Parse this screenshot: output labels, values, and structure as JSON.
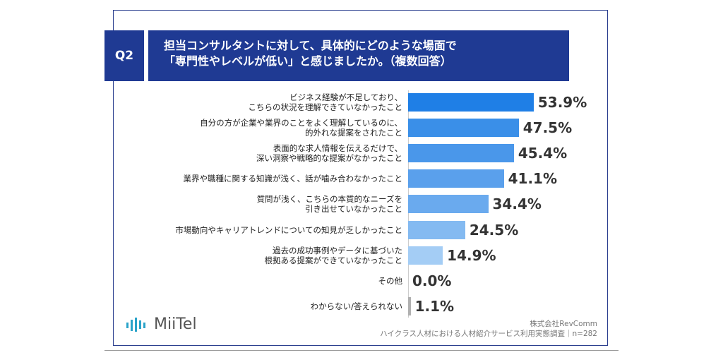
{
  "chart_data": {
    "type": "bar",
    "orientation": "horizontal",
    "question": "Q2",
    "title": "担当コンサルタントに対して、具体的にどのような場面で\n「専門性やレベルが低い」と感じましたか。（複数回答）",
    "categories": [
      "ビジネス経験が不足しており、\nこちらの状況を理解できていなかったこと",
      "自分の方が企業や業界のことをよく理解しているのに、\n的外れな提案をされたこと",
      "表面的な求人情報を伝えるだけで、\n深い洞察や戦略的な提案がなかったこと",
      "業界や職種に関する知識が浅く、話が噛み合わなかったこと",
      "質問が浅く、こちらの本質的なニーズを\n引き出せていなかったこと",
      "市場動向やキャリアトレンドについての知見が乏しかったこと",
      "過去の成功事例やデータに基づいた\n根拠ある提案ができていなかったこと",
      "その他",
      "わからない/答えられない"
    ],
    "values": [
      53.9,
      47.5,
      45.4,
      41.1,
      34.4,
      24.5,
      14.9,
      0.0,
      1.1
    ],
    "value_labels": [
      "53.9%",
      "47.5%",
      "45.4%",
      "41.1%",
      "34.4%",
      "24.5%",
      "14.9%",
      "0.0%",
      "1.1%"
    ],
    "colors": [
      "#1f7fe6",
      "#3a8fe8",
      "#4a97ea",
      "#5aa0ec",
      "#6aaaee",
      "#84baf1",
      "#a4cdf5",
      "#a4cdf5",
      "#b0b0b0"
    ],
    "logo": "MiiTel",
    "source": "株式会社RevComm",
    "survey": "ハイクラス人材における人材紹介サービス利用実態調査｜n=282"
  }
}
